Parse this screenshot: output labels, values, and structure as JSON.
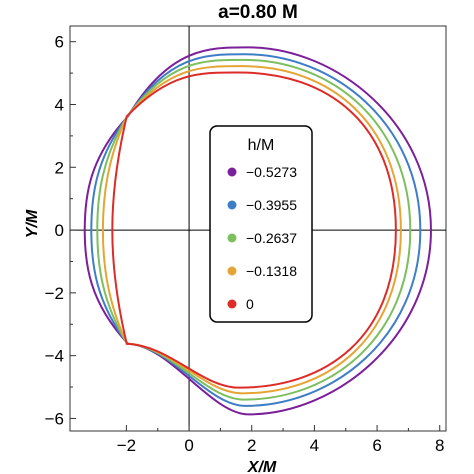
{
  "chart_data": {
    "type": "line",
    "title": "a=0.80 M",
    "xlabel": "X/M",
    "ylabel": "Y/M",
    "xlim": [
      -3.8,
      8.2
    ],
    "ylim": [
      -6.4,
      6.5
    ],
    "x_ticks": [
      -2,
      0,
      2,
      4,
      6,
      8
    ],
    "y_ticks": [
      -6,
      -4,
      -2,
      0,
      2,
      4,
      6
    ],
    "x_tick_labels": [
      "−2",
      "0",
      "2",
      "4",
      "6",
      "8"
    ],
    "y_tick_labels": [
      "−6",
      "−4",
      "−2",
      "0",
      "2",
      "4",
      "6"
    ],
    "grid": false,
    "legend": {
      "title": "h/M",
      "placement": "center",
      "entries": [
        "−0.5273",
        "−0.3955",
        "−0.2637",
        "−0.1318",
        "0"
      ]
    },
    "series": [
      {
        "name": "−0.5273",
        "color": "#7b1f9a",
        "xmin": -3.33,
        "xmax": 7.72,
        "ymin": -5.87,
        "ymax": 5.82,
        "x_at_ymax": 1.9
      },
      {
        "name": "−0.3955",
        "color": "#3e7ec6",
        "xmin": -3.12,
        "xmax": 7.38,
        "ymin": -5.6,
        "ymax": 5.6,
        "x_at_ymax": 1.8
      },
      {
        "name": "−0.2637",
        "color": "#7dbf5e",
        "xmin": -2.93,
        "xmax": 7.06,
        "ymin": -5.4,
        "ymax": 5.42,
        "x_at_ymax": 1.75
      },
      {
        "name": "−0.1318",
        "color": "#e5a534",
        "xmin": -2.75,
        "xmax": 6.76,
        "ymin": -5.2,
        "ymax": 5.22,
        "x_at_ymax": 1.7
      },
      {
        "name": "0",
        "color": "#dd2c27",
        "xmin": -2.45,
        "xmax": 6.6,
        "ymin": -5.02,
        "ymax": 5.02,
        "x_at_ymax": 1.6
      }
    ]
  }
}
